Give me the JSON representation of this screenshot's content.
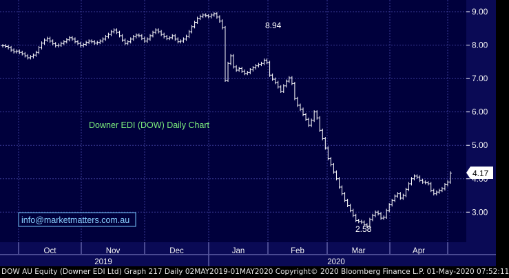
{
  "chart_data": {
    "type": "ohlc",
    "title": "Downer EDI (DOW) Daily Chart",
    "y_ticks": [
      "9.00",
      "8.00",
      "7.00",
      "6.00",
      "5.00",
      "4.00",
      "3.00"
    ],
    "ylim": [
      2.1,
      9.35
    ],
    "grid": true,
    "x_month_labels": [
      "Oct",
      "Nov",
      "Dec",
      "Jan",
      "Feb",
      "Mar",
      "Apr"
    ],
    "x_year_labels": [
      "2019",
      "2020"
    ],
    "last_price": "4.17",
    "annotations": [
      {
        "text": "8.94",
        "value": 8.94
      },
      {
        "text": "2.58",
        "value": 2.58
      }
    ],
    "series": [
      {
        "values": [
          7.98,
          7.96,
          7.92,
          7.85,
          7.8,
          7.82,
          7.78,
          7.74,
          7.68,
          7.62,
          7.65,
          7.7,
          7.78,
          7.92,
          8.06,
          8.15,
          8.2,
          8.12,
          8.04,
          7.98,
          8.0,
          8.05,
          8.1,
          8.16,
          8.22,
          8.18,
          8.1,
          8.05,
          7.98,
          8.02,
          8.08,
          8.12,
          8.1,
          8.06,
          8.08,
          8.12,
          8.18,
          8.25,
          8.32,
          8.4,
          8.45,
          8.38,
          8.28,
          8.15,
          8.05,
          8.1,
          8.18,
          8.25,
          8.3,
          8.28,
          8.2,
          8.12,
          8.18,
          8.28,
          8.38,
          8.45,
          8.4,
          8.32,
          8.25,
          8.2,
          8.22,
          8.28,
          8.18,
          8.1,
          8.12,
          8.18,
          8.26,
          8.4,
          8.55,
          8.68,
          8.8,
          8.86,
          8.9,
          8.88,
          8.85,
          8.9,
          8.94,
          8.84,
          8.72,
          8.52,
          6.95,
          7.45,
          7.68,
          7.35,
          7.25,
          7.3,
          7.22,
          7.15,
          7.18,
          7.26,
          7.32,
          7.38,
          7.42,
          7.45,
          7.55,
          7.48,
          7.1,
          6.98,
          6.88,
          6.75,
          6.62,
          6.78,
          6.92,
          7.02,
          6.85,
          6.4,
          6.2,
          6.08,
          5.92,
          5.78,
          5.6,
          5.75,
          6.0,
          5.82,
          5.45,
          5.2,
          4.92,
          4.6,
          4.42,
          4.2,
          4.0,
          3.75,
          3.55,
          3.35,
          3.2,
          3.05,
          2.9,
          2.75,
          2.72,
          2.7,
          2.62,
          2.58,
          2.78,
          2.9,
          3.0,
          2.95,
          2.82,
          2.85,
          3.05,
          3.22,
          3.35,
          3.48,
          3.55,
          3.42,
          3.5,
          3.68,
          3.85,
          4.0,
          4.08,
          4.05,
          3.95,
          3.9,
          3.88,
          3.85,
          3.65,
          3.55,
          3.6,
          3.65,
          3.7,
          3.82,
          3.9,
          4.17
        ]
      }
    ]
  },
  "info": {
    "text": "info@marketmatters.com.au"
  },
  "footer": {
    "text": "DOW AU Equity (Downer EDI Ltd) Graph 217  Daily 02MAY2019-01MAY2020 Copyright© 2020 Bloomberg Finance L.P. 01-May-2020 07:52:11"
  },
  "colors": {
    "plot_bg": "#00003c",
    "axis_bg": "#0a0a55",
    "grid": "#3a3a95",
    "bars": "#ffffff",
    "title": "#7df07d",
    "info_box": "#79c8ff",
    "info_text": "#8ad0ff"
  }
}
